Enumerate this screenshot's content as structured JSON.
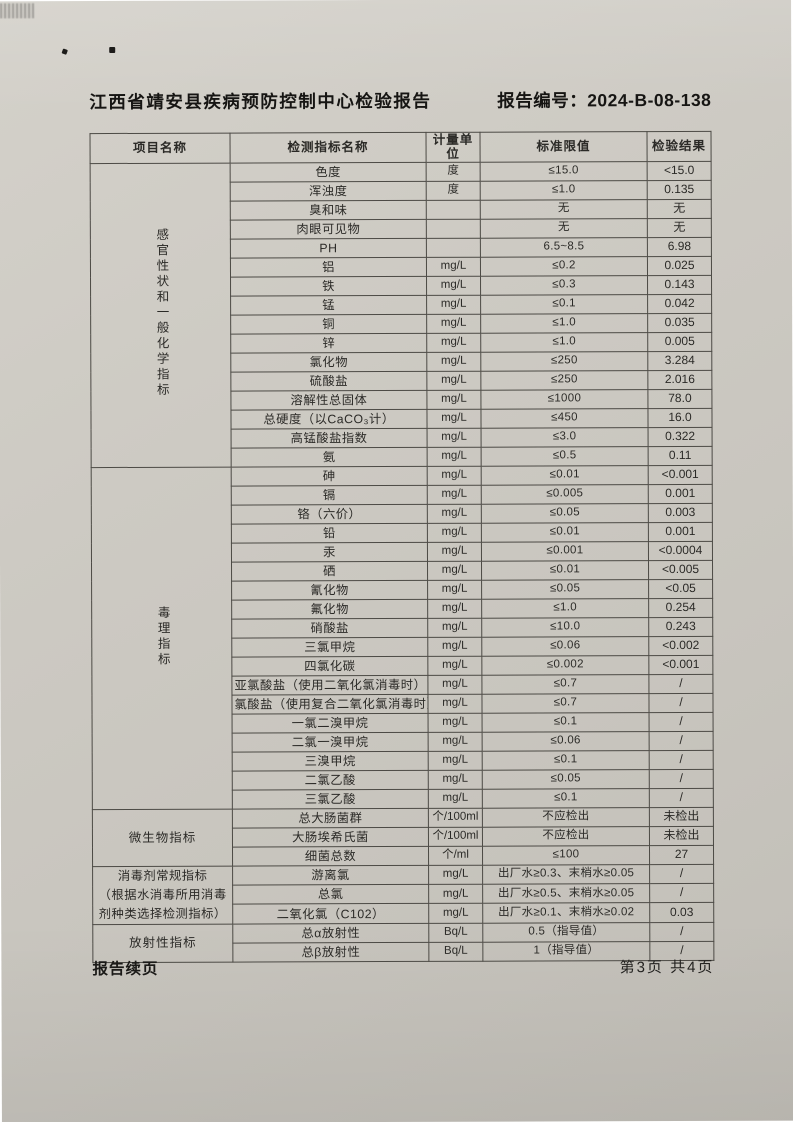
{
  "page": {
    "title": "江西省靖安县疾病预防控制中心检验报告",
    "report_no": "报告编号：2024-B-08-138",
    "footer_left": "报告续页",
    "footer_right": "第3页 共4页"
  },
  "table": {
    "headers": [
      "项目名称",
      "检测指标名称",
      "计量单位",
      "标准限值",
      "检验结果"
    ],
    "sections": [
      {
        "name": "感官性状和一般化学指标",
        "label_mode": "vertical",
        "rows": [
          [
            "色度",
            "度",
            "≤15.0",
            "<15.0"
          ],
          [
            "浑浊度",
            "度",
            "≤1.0",
            "0.135"
          ],
          [
            "臭和味",
            "",
            "无",
            "无"
          ],
          [
            "肉眼可见物",
            "",
            "无",
            "无"
          ],
          [
            "PH",
            "",
            "6.5~8.5",
            "6.98"
          ],
          [
            "铝",
            "mg/L",
            "≤0.2",
            "0.025"
          ],
          [
            "铁",
            "mg/L",
            "≤0.3",
            "0.143"
          ],
          [
            "锰",
            "mg/L",
            "≤0.1",
            "0.042"
          ],
          [
            "铜",
            "mg/L",
            "≤1.0",
            "0.035"
          ],
          [
            "锌",
            "mg/L",
            "≤1.0",
            "0.005"
          ],
          [
            "氯化物",
            "mg/L",
            "≤250",
            "3.284"
          ],
          [
            "硫酸盐",
            "mg/L",
            "≤250",
            "2.016"
          ],
          [
            "溶解性总固体",
            "mg/L",
            "≤1000",
            "78.0"
          ],
          [
            "总硬度（以CaCO₃计）",
            "mg/L",
            "≤450",
            "16.0"
          ],
          [
            "高锰酸盐指数",
            "mg/L",
            "≤3.0",
            "0.322"
          ],
          [
            "氨",
            "mg/L",
            "≤0.5",
            "0.11"
          ]
        ]
      },
      {
        "name": "毒理指标",
        "label_mode": "vertical",
        "rows": [
          [
            "砷",
            "mg/L",
            "≤0.01",
            "<0.001"
          ],
          [
            "镉",
            "mg/L",
            "≤0.005",
            "0.001"
          ],
          [
            "铬（六价）",
            "mg/L",
            "≤0.05",
            "0.003"
          ],
          [
            "铅",
            "mg/L",
            "≤0.01",
            "0.001"
          ],
          [
            "汞",
            "mg/L",
            "≤0.001",
            "<0.0004"
          ],
          [
            "硒",
            "mg/L",
            "≤0.01",
            "<0.005"
          ],
          [
            "氰化物",
            "mg/L",
            "≤0.05",
            "<0.05"
          ],
          [
            "氟化物",
            "mg/L",
            "≤1.0",
            "0.254"
          ],
          [
            "硝酸盐",
            "mg/L",
            "≤10.0",
            "0.243"
          ],
          [
            "三氯甲烷",
            "mg/L",
            "≤0.06",
            "<0.002"
          ],
          [
            "四氯化碳",
            "mg/L",
            "≤0.002",
            "<0.001"
          ],
          [
            "亚氯酸盐（使用二氧化氯消毒时）",
            "mg/L",
            "≤0.7",
            "/"
          ],
          [
            "氯酸盐（使用复合二氧化氯消毒时）",
            "mg/L",
            "≤0.7",
            "/"
          ],
          [
            "一氯二溴甲烷",
            "mg/L",
            "≤0.1",
            "/"
          ],
          [
            "二氯一溴甲烷",
            "mg/L",
            "≤0.06",
            "/"
          ],
          [
            "三溴甲烷",
            "mg/L",
            "≤0.1",
            "/"
          ],
          [
            "二氯乙酸",
            "mg/L",
            "≤0.05",
            "/"
          ],
          [
            "三氯乙酸",
            "mg/L",
            "≤0.1",
            "/"
          ]
        ]
      },
      {
        "name": "微生物指标",
        "label_mode": "horizontal",
        "rows": [
          [
            "总大肠菌群",
            "个/100ml",
            "不应检出",
            "未检出"
          ],
          [
            "大肠埃希氏菌",
            "个/100ml",
            "不应检出",
            "未检出"
          ],
          [
            "细菌总数",
            "个/ml",
            "≤100",
            "27"
          ]
        ]
      },
      {
        "name": "消毒剂常规指标\n（根据水消毒所用消毒\n剂种类选择检测指标）",
        "label_mode": "multiline",
        "rows": [
          [
            "游离氯",
            "mg/L",
            "出厂水≥0.3、末梢水≥0.05",
            "/"
          ],
          [
            "总氯",
            "mg/L",
            "出厂水≥0.5、末梢水≥0.05",
            "/"
          ],
          [
            "二氧化氯（C102）",
            "mg/L",
            "出厂水≥0.1、末梢水≥0.02",
            "0.03"
          ]
        ]
      },
      {
        "name": "放射性指标",
        "label_mode": "horizontal",
        "rows": [
          [
            "总α放射性",
            "Bq/L",
            "0.5（指导值）",
            "/"
          ],
          [
            "总β放射性",
            "Bq/L",
            "1（指导值）",
            "/"
          ]
        ]
      }
    ]
  }
}
